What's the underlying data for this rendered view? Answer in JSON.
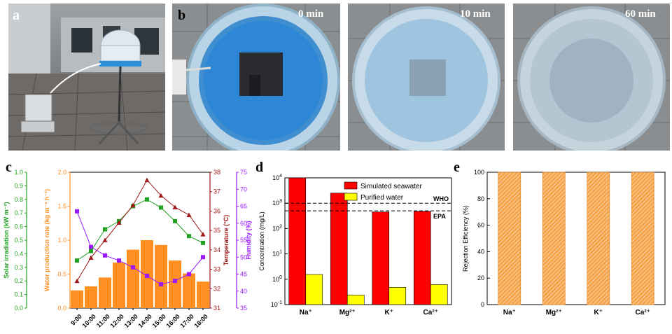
{
  "panel_letters": {
    "a": "a",
    "b": "b",
    "c": "c",
    "d": "d",
    "e": "e"
  },
  "photo_labels": {
    "t0": "0 min",
    "t10": "10 min",
    "t60": "60 min"
  },
  "colors": {
    "orange": "#ff9021",
    "green": "#21a121",
    "darkred": "#a01818",
    "purple": "#9b18ff",
    "red": "#ff0000",
    "yellow": "#ffff00",
    "hatch": "#f5a44a"
  },
  "chart_data": [
    {
      "id": "c",
      "type": "bar+line",
      "categories": [
        "9:00",
        "10:00",
        "11:00",
        "12:00",
        "13:00",
        "14:00",
        "15:00",
        "16:00",
        "17:00",
        "18:00"
      ],
      "water_production": {
        "label": "Water production rate (kg m⁻² h⁻¹)",
        "range": [
          0,
          2.0
        ],
        "ticks": [
          "0.0",
          "0.5",
          "1.0",
          "1.5",
          "2.0"
        ],
        "values": [
          0.26,
          0.32,
          0.45,
          0.67,
          0.86,
          1.0,
          0.93,
          0.7,
          0.51,
          0.39
        ]
      },
      "solar": {
        "label": "Solar irradiation (kW m⁻²)",
        "range": [
          0,
          1.0
        ],
        "ticks": [
          "0.0",
          "0.1",
          "0.2",
          "0.3",
          "0.4",
          "0.5",
          "0.6",
          "0.7",
          "0.8",
          "0.9",
          "1.0"
        ],
        "values": [
          0.35,
          0.42,
          0.58,
          0.64,
          0.75,
          0.8,
          0.74,
          0.64,
          0.53,
          0.48
        ]
      },
      "temperature": {
        "label": "Temperature (°C)",
        "range": [
          31,
          38
        ],
        "ticks": [
          "31",
          "32",
          "33",
          "34",
          "35",
          "36",
          "37",
          "38"
        ],
        "values": [
          32.4,
          33.6,
          34.5,
          35.4,
          36.3,
          37.6,
          36.8,
          36.2,
          35.8,
          34.8
        ]
      },
      "humidity": {
        "label": "Humidity (%)",
        "range": [
          35,
          75
        ],
        "ticks": [
          "35",
          "40",
          "45",
          "50",
          "55",
          "60",
          "65",
          "70",
          "75"
        ],
        "values": [
          63.5,
          53.0,
          50.5,
          49.0,
          47.0,
          44.5,
          42.0,
          43.0,
          45.0,
          50.0
        ]
      }
    },
    {
      "id": "d",
      "type": "bar",
      "scale": "log",
      "categories": [
        "Na⁺",
        "Mg²⁺",
        "K⁺",
        "Ca²⁺"
      ],
      "ylabel": "Concentration (mg/L)",
      "ylim": [
        0.1,
        10000
      ],
      "ytick_bases": [
        "10",
        "10",
        "10",
        "10",
        "10",
        "10"
      ],
      "ytick_exps": [
        "-1",
        "0",
        "1",
        "2",
        "3",
        "4"
      ],
      "series": [
        {
          "name": "Simulated seawater",
          "values": [
            10000,
            2500,
            450,
            480
          ]
        },
        {
          "name": "Purified water",
          "values": [
            1.55,
            0.24,
            0.48,
            0.62
          ]
        }
      ],
      "annotations": [
        {
          "text": "WHO",
          "value": 1000
        },
        {
          "text": "EPA",
          "value": 500
        }
      ]
    },
    {
      "id": "e",
      "type": "bar",
      "categories": [
        "Na⁺",
        "Mg²⁺",
        "K⁺",
        "Ca²⁺"
      ],
      "ylabel": "Rejection Efficiency (%)",
      "ylim": [
        0,
        100
      ],
      "yticks": [
        "0",
        "20",
        "40",
        "60",
        "80",
        "100"
      ],
      "values": [
        99.98,
        99.99,
        99.9,
        99.87
      ]
    }
  ]
}
